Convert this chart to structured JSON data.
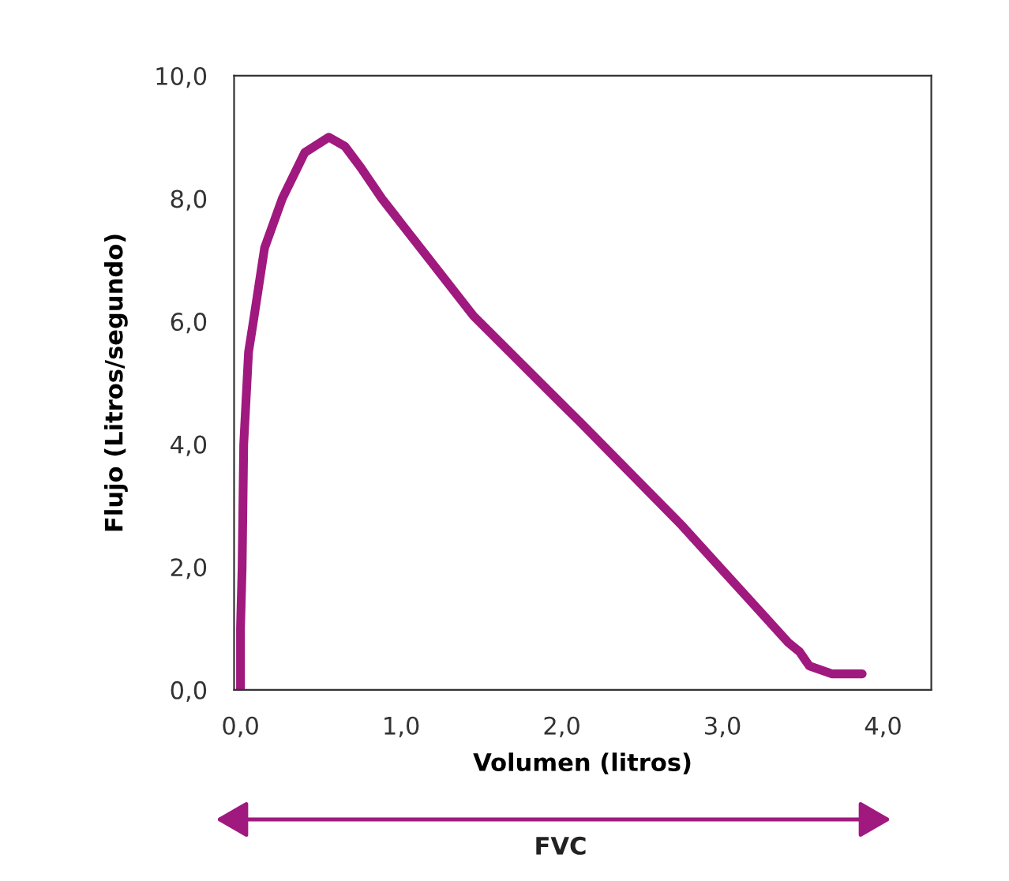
{
  "chart_data": {
    "type": "line",
    "xlabel": "Volumen (litros)",
    "ylabel": "Flujo (Litros/segundo)",
    "x": [
      0,
      0,
      0.01,
      0.02,
      0.05,
      0.08,
      0.15,
      0.26,
      0.4,
      0.55,
      0.65,
      0.75,
      0.88,
      0.99,
      1.45,
      2.04,
      2.11,
      2.75,
      3.0,
      3.41,
      3.48,
      3.54,
      3.68,
      3.87
    ],
    "series": [
      {
        "color": "#a0197f",
        "values": [
          0,
          1,
          2,
          4,
          5.5,
          6,
          7.2,
          8.0,
          8.75,
          9.0,
          8.85,
          8.5,
          8.0,
          7.63,
          6.09,
          4.55,
          4.37,
          2.67,
          1.95,
          0.77,
          0.62,
          0.39,
          0.26,
          0.26
        ]
      }
    ],
    "xlim": [
      -0.04,
      4.3
    ],
    "ylim": [
      0,
      10
    ],
    "xticks": [
      {
        "value": 0,
        "label": "0,0"
      },
      {
        "value": 1,
        "label": "1,0"
      },
      {
        "value": 2,
        "label": "2,0"
      },
      {
        "value": 3,
        "label": "3,0"
      },
      {
        "value": 4,
        "label": "4,0"
      }
    ],
    "yticks": [
      {
        "value": 0,
        "label": "0,0"
      },
      {
        "value": 2,
        "label": "2,0"
      },
      {
        "value": 4,
        "label": "4,0"
      },
      {
        "value": 6,
        "label": "6,0"
      },
      {
        "value": 8,
        "label": "8,0"
      },
      {
        "value": 10,
        "label": "10,0"
      }
    ],
    "grid": false,
    "legend": false,
    "marker": "none",
    "line_style": "solid",
    "annotations": [
      "FVC"
    ]
  }
}
